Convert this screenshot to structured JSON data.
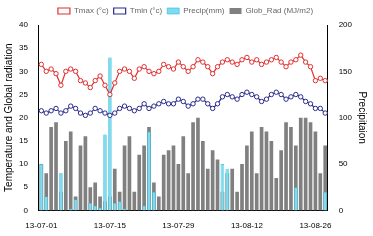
{
  "chart_data": {
    "type": "bar",
    "categories": [
      "13-07-01",
      null,
      null,
      null,
      null,
      null,
      null,
      null,
      null,
      null,
      null,
      null,
      null,
      null,
      "13-07-15",
      null,
      null,
      null,
      null,
      null,
      null,
      null,
      null,
      null,
      null,
      null,
      null,
      null,
      "13-07-29",
      null,
      null,
      null,
      null,
      null,
      null,
      null,
      null,
      null,
      null,
      null,
      null,
      null,
      "13-08-12",
      null,
      null,
      null,
      null,
      null,
      null,
      null,
      null,
      null,
      null,
      null,
      null,
      null,
      "13-08-26",
      null,
      null
    ],
    "y_label": "Temperature and Global radiation",
    "y2_label": "Precipitaion",
    "ylim": [
      0,
      40
    ],
    "yticks": [
      0,
      5,
      10,
      15,
      20,
      25,
      30,
      35,
      40
    ],
    "y2lim": [
      0,
      200
    ],
    "y2ticks": [
      0,
      50,
      100,
      150,
      200
    ],
    "grid": false,
    "legend": "top",
    "series": [
      {
        "name": "Tmax (°c)",
        "type": "line",
        "color": "#e03030",
        "marker": "circle",
        "values": [
          31.5,
          30,
          30.5,
          29.5,
          27,
          30,
          30.5,
          30,
          28,
          27.5,
          26.5,
          28,
          29,
          27,
          25,
          27.5,
          30,
          30.5,
          30,
          28.5,
          30.5,
          31,
          30,
          29.5,
          30,
          31.5,
          31,
          30.5,
          32,
          31,
          30,
          31,
          32.5,
          32,
          31,
          29.5,
          31,
          32,
          32.5,
          32,
          31.5,
          32.5,
          33,
          32,
          32.5,
          31.5,
          32,
          32.5,
          33,
          32,
          31,
          32,
          32.5,
          33.5,
          32,
          31,
          28,
          28.5,
          28
        ]
      },
      {
        "name": "Tmin (°c)",
        "type": "line",
        "color": "#2b2b8c",
        "marker": "circle",
        "values": [
          21.5,
          21,
          21.5,
          22,
          21,
          21.5,
          22.5,
          22,
          21,
          20.5,
          21,
          22,
          21.5,
          21,
          20.5,
          21,
          22,
          22.5,
          22,
          21.5,
          22,
          23,
          22,
          22.5,
          23,
          23.5,
          23,
          23,
          24,
          23.5,
          22.5,
          23,
          24,
          24,
          23,
          22,
          23,
          24.5,
          25,
          24.5,
          24,
          25,
          25.5,
          25,
          24.5,
          23.5,
          24,
          25,
          25.5,
          25,
          24,
          24.5,
          25,
          24.5,
          23.5,
          23,
          22,
          22,
          21
        ]
      },
      {
        "name": "Glob_Rad (MJ/m2)",
        "type": "bar",
        "color": "#808080",
        "values": [
          10,
          8,
          18,
          19,
          4,
          15,
          17,
          3,
          14,
          16,
          5,
          6,
          3,
          2,
          3,
          9,
          4,
          14,
          16,
          4,
          12,
          14,
          18,
          6,
          3,
          12,
          13,
          14,
          10,
          16,
          8,
          19,
          20,
          15,
          9,
          13,
          11,
          4,
          8,
          9,
          4,
          10,
          14,
          17,
          8,
          18,
          17,
          15,
          7,
          13,
          19,
          18,
          14,
          20,
          20,
          19,
          17,
          8,
          14
        ]
      },
      {
        "name": "Precip(mm)",
        "type": "bar",
        "axis": "y2",
        "color": "#7fdcef",
        "values": [
          50,
          15,
          0,
          0,
          40,
          0,
          2,
          12,
          0,
          0,
          8,
          5,
          3,
          82,
          165,
          8,
          10,
          2,
          0,
          0,
          0,
          5,
          85,
          20,
          0,
          0,
          0,
          0,
          0,
          0,
          0,
          0,
          0,
          0,
          0,
          0,
          0,
          50,
          45,
          0,
          0,
          0,
          0,
          0,
          0,
          0,
          0,
          0,
          0,
          0,
          0,
          0,
          25,
          0,
          0,
          0,
          0,
          0,
          20
        ]
      }
    ]
  }
}
